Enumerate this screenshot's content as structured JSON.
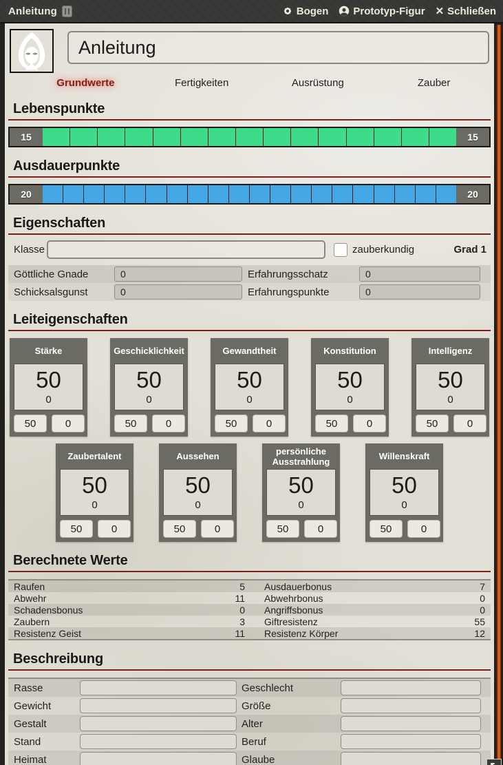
{
  "titlebar": {
    "title": "Anleitung",
    "bogen_label": "Bogen",
    "figur_label": "Prototyp-Figur",
    "close_label": "Schließen"
  },
  "header": {
    "name_value": "Anleitung"
  },
  "tabs": {
    "items": [
      {
        "label": "Grundwerte",
        "active": true
      },
      {
        "label": "Fertigkeiten",
        "active": false
      },
      {
        "label": "Ausrüstung",
        "active": false
      },
      {
        "label": "Zauber",
        "active": false
      }
    ]
  },
  "lebenspunkte": {
    "heading": "Lebenspunkte",
    "max": "15",
    "current": "15",
    "segments": {
      "count": 15,
      "color": "#3edc8a"
    }
  },
  "ausdauerpunkte": {
    "heading": "Ausdauerpunkte",
    "max": "20",
    "current": "20",
    "segments": {
      "count": 20,
      "color": "#42a7e2"
    }
  },
  "eigenschaften": {
    "heading": "Eigenschaften",
    "klasse_label": "Klasse",
    "klasse_value": "",
    "zauberkundig_label": "zauberkundig",
    "grad_label": "Grad 1",
    "fields": [
      {
        "label": "Göttliche Gnade",
        "value": "0"
      },
      {
        "label": "Erfahrungsschatz",
        "value": "0"
      },
      {
        "label": "Schicksalsgunst",
        "value": "0"
      },
      {
        "label": "Erfahrungspunkte",
        "value": "0"
      }
    ]
  },
  "leiteigenschaften": {
    "heading": "Leiteigenschaften",
    "attributes": [
      {
        "name": "Stärke",
        "value": "50",
        "mod": "0",
        "base": "50",
        "adjust": "0"
      },
      {
        "name": "Geschicklichkeit",
        "value": "50",
        "mod": "0",
        "base": "50",
        "adjust": "0"
      },
      {
        "name": "Gewandtheit",
        "value": "50",
        "mod": "0",
        "base": "50",
        "adjust": "0"
      },
      {
        "name": "Konstitution",
        "value": "50",
        "mod": "0",
        "base": "50",
        "adjust": "0"
      },
      {
        "name": "Intelligenz",
        "value": "50",
        "mod": "0",
        "base": "50",
        "adjust": "0"
      },
      {
        "name": "Zaubertalent",
        "value": "50",
        "mod": "0",
        "base": "50",
        "adjust": "0"
      },
      {
        "name": "Aussehen",
        "value": "50",
        "mod": "0",
        "base": "50",
        "adjust": "0"
      },
      {
        "name": "persönliche Ausstrahlung",
        "value": "50",
        "mod": "0",
        "base": "50",
        "adjust": "0"
      },
      {
        "name": "Willenskraft",
        "value": "50",
        "mod": "0",
        "base": "50",
        "adjust": "0"
      }
    ]
  },
  "berechnete_werte": {
    "heading": "Berechnete Werte",
    "rows": [
      {
        "left_label": "Raufen",
        "left_value": "5",
        "right_label": "Ausdauerbonus",
        "right_value": "7"
      },
      {
        "left_label": "Abwehr",
        "left_value": "11",
        "right_label": "Abwehrbonus",
        "right_value": "0"
      },
      {
        "left_label": "Schadensbonus",
        "left_value": "0",
        "right_label": "Angriffsbonus",
        "right_value": "0"
      },
      {
        "left_label": "Zaubern",
        "left_value": "3",
        "right_label": "Giftresistenz",
        "right_value": "55"
      },
      {
        "left_label": "Resistenz Geist",
        "left_value": "11",
        "right_label": "Resistenz Körper",
        "right_value": "12"
      }
    ]
  },
  "beschreibung": {
    "heading": "Beschreibung",
    "rows": [
      {
        "left_label": "Rasse",
        "left_value": "",
        "right_label": "Geschlecht",
        "right_value": ""
      },
      {
        "left_label": "Gewicht",
        "left_value": "",
        "right_label": "Größe",
        "right_value": ""
      },
      {
        "left_label": "Gestalt",
        "left_value": "",
        "right_label": "Alter",
        "right_value": ""
      },
      {
        "left_label": "Stand",
        "left_value": "",
        "right_label": "Beruf",
        "right_value": ""
      },
      {
        "left_label": "Heimat",
        "left_value": "",
        "right_label": "Glaube",
        "right_value": ""
      }
    ]
  },
  "colors": {
    "hp_green": "#3edc8a",
    "ap_blue": "#42a7e2",
    "accent_red": "#7a221a",
    "panel_gray": "#6b6a63",
    "scrollbar_orange": "#cf5f17"
  }
}
